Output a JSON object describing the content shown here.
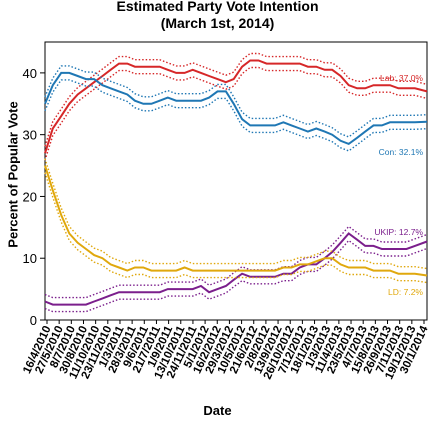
{
  "chart_data": {
    "type": "line",
    "title_line1": "Estimated Party Vote Intention",
    "title_line2": "(March 1st, 2014)",
    "xlabel": "Date",
    "ylabel": "Percent of Popular Vote",
    "ylim": [
      0,
      45
    ],
    "yticks": [
      0,
      10,
      20,
      30,
      40
    ],
    "xlim": [
      "2010-04-16",
      "2014-03-01"
    ],
    "xtick_labels": [
      "16/4/2010",
      "27/5/2010",
      "8/7/2010",
      "30/8/2010",
      "11/10/2010",
      "23/11/2010",
      "1/3/2011",
      "28/3/2011",
      "9/6/2011",
      "21/7/2011",
      "1/9/2011",
      "13/10/2011",
      "24/11/2011",
      "5/1/2012",
      "16/2/2012",
      "29/3/2012",
      "10/5/2012",
      "21/6/2012",
      "2/8/2012",
      "13/9/2012",
      "26/10/2012",
      "7/12/2012",
      "18/1/2013",
      "1/3/2013",
      "11/4/2013",
      "23/5/2013",
      "4/7/2013",
      "15/8/2013",
      "26/9/2013",
      "7/11/2013",
      "19/12/2013",
      "30/1/2014"
    ],
    "grid": false,
    "series": [
      {
        "name": "Lab",
        "end_label": "Lab: 37.0%",
        "color": "#d62728",
        "points": [
          [
            "2010-04-16",
            27
          ],
          [
            "2010-05-15",
            31
          ],
          [
            "2010-06-15",
            33
          ],
          [
            "2010-07-15",
            35
          ],
          [
            "2010-08-15",
            36.5
          ],
          [
            "2010-09-15",
            37.5
          ],
          [
            "2010-10-15",
            38.5
          ],
          [
            "2010-11-15",
            39.5
          ],
          [
            "2010-12-15",
            40.5
          ],
          [
            "2011-01-15",
            41.5
          ],
          [
            "2011-02-15",
            41.5
          ],
          [
            "2011-03-15",
            41
          ],
          [
            "2011-04-15",
            41
          ],
          [
            "2011-05-15",
            41
          ],
          [
            "2011-06-15",
            41
          ],
          [
            "2011-07-15",
            40.5
          ],
          [
            "2011-08-15",
            40
          ],
          [
            "2011-09-15",
            40
          ],
          [
            "2011-10-15",
            40.5
          ],
          [
            "2011-11-15",
            40
          ],
          [
            "2011-12-15",
            39.5
          ],
          [
            "2012-01-15",
            39
          ],
          [
            "2012-02-15",
            38.5
          ],
          [
            "2012-03-15",
            39
          ],
          [
            "2012-04-15",
            41
          ],
          [
            "2012-05-15",
            42
          ],
          [
            "2012-06-15",
            42
          ],
          [
            "2012-07-15",
            41.5
          ],
          [
            "2012-08-15",
            41.5
          ],
          [
            "2012-09-15",
            41.5
          ],
          [
            "2012-10-15",
            41.5
          ],
          [
            "2012-11-15",
            41.5
          ],
          [
            "2012-12-15",
            41
          ],
          [
            "2013-01-15",
            41
          ],
          [
            "2013-02-15",
            40.5
          ],
          [
            "2013-03-15",
            40.5
          ],
          [
            "2013-04-15",
            39.5
          ],
          [
            "2013-05-15",
            38
          ],
          [
            "2013-06-15",
            37.5
          ],
          [
            "2013-07-15",
            37.5
          ],
          [
            "2013-08-15",
            38
          ],
          [
            "2013-09-15",
            38
          ],
          [
            "2013-10-15",
            38
          ],
          [
            "2013-11-15",
            37.5
          ],
          [
            "2013-12-15",
            37.5
          ],
          [
            "2014-01-15",
            37.5
          ],
          [
            "2014-03-01",
            37
          ]
        ]
      },
      {
        "name": "Con",
        "end_label": "Con: 32.1%",
        "color": "#1f77b4",
        "points": [
          [
            "2010-04-16",
            35
          ],
          [
            "2010-05-15",
            38
          ],
          [
            "2010-06-15",
            40
          ],
          [
            "2010-07-15",
            40
          ],
          [
            "2010-08-15",
            39.5
          ],
          [
            "2010-09-15",
            39
          ],
          [
            "2010-10-15",
            39
          ],
          [
            "2010-11-15",
            38
          ],
          [
            "2010-12-15",
            37.5
          ],
          [
            "2011-01-15",
            37
          ],
          [
            "2011-02-15",
            36.5
          ],
          [
            "2011-03-15",
            35.5
          ],
          [
            "2011-04-15",
            35
          ],
          [
            "2011-05-15",
            35
          ],
          [
            "2011-06-15",
            35.5
          ],
          [
            "2011-07-15",
            36
          ],
          [
            "2011-08-15",
            35.5
          ],
          [
            "2011-09-15",
            35.5
          ],
          [
            "2011-10-15",
            35.5
          ],
          [
            "2011-11-15",
            35.5
          ],
          [
            "2011-12-15",
            36
          ],
          [
            "2012-01-15",
            37
          ],
          [
            "2012-02-15",
            37
          ],
          [
            "2012-03-15",
            35
          ],
          [
            "2012-04-15",
            32.5
          ],
          [
            "2012-05-15",
            31.5
          ],
          [
            "2012-06-15",
            31.5
          ],
          [
            "2012-07-15",
            31.5
          ],
          [
            "2012-08-15",
            31.5
          ],
          [
            "2012-09-15",
            32
          ],
          [
            "2012-10-15",
            31.5
          ],
          [
            "2012-11-15",
            31
          ],
          [
            "2012-12-15",
            30.5
          ],
          [
            "2013-01-15",
            31
          ],
          [
            "2013-02-15",
            30.5
          ],
          [
            "2013-03-15",
            30
          ],
          [
            "2013-04-15",
            29
          ],
          [
            "2013-05-15",
            28.5
          ],
          [
            "2013-06-15",
            29.5
          ],
          [
            "2013-07-15",
            30.5
          ],
          [
            "2013-08-15",
            31.5
          ],
          [
            "2013-09-15",
            31.5
          ],
          [
            "2013-10-15",
            32
          ],
          [
            "2013-11-15",
            32
          ],
          [
            "2013-12-15",
            32
          ],
          [
            "2014-01-15",
            32
          ],
          [
            "2014-03-01",
            32.1
          ]
        ]
      },
      {
        "name": "UKIP",
        "end_label": "UKIP: 12.7%",
        "color": "#7b1f8c",
        "points": [
          [
            "2010-04-16",
            3
          ],
          [
            "2010-05-15",
            2.5
          ],
          [
            "2010-06-15",
            2.5
          ],
          [
            "2010-07-15",
            2.5
          ],
          [
            "2010-08-15",
            2.5
          ],
          [
            "2010-09-15",
            2.5
          ],
          [
            "2010-10-15",
            3
          ],
          [
            "2010-11-15",
            3.5
          ],
          [
            "2010-12-15",
            4
          ],
          [
            "2011-01-15",
            4.5
          ],
          [
            "2011-02-15",
            4.5
          ],
          [
            "2011-03-15",
            4.5
          ],
          [
            "2011-04-15",
            4.5
          ],
          [
            "2011-05-15",
            4.5
          ],
          [
            "2011-06-15",
            4.5
          ],
          [
            "2011-07-15",
            5
          ],
          [
            "2011-08-15",
            5
          ],
          [
            "2011-09-15",
            5
          ],
          [
            "2011-10-15",
            5
          ],
          [
            "2011-11-15",
            5.5
          ],
          [
            "2011-12-15",
            4.5
          ],
          [
            "2012-01-15",
            5
          ],
          [
            "2012-02-15",
            5.5
          ],
          [
            "2012-03-15",
            6.5
          ],
          [
            "2012-04-15",
            7.5
          ],
          [
            "2012-05-15",
            7
          ],
          [
            "2012-06-15",
            7
          ],
          [
            "2012-07-15",
            7
          ],
          [
            "2012-08-15",
            7
          ],
          [
            "2012-09-15",
            7.5
          ],
          [
            "2012-10-15",
            7.5
          ],
          [
            "2012-11-15",
            8.5
          ],
          [
            "2012-12-15",
            9
          ],
          [
            "2013-01-15",
            9
          ],
          [
            "2013-02-15",
            10
          ],
          [
            "2013-03-15",
            11
          ],
          [
            "2013-04-15",
            12.5
          ],
          [
            "2013-05-15",
            14
          ],
          [
            "2013-06-15",
            13
          ],
          [
            "2013-07-15",
            12
          ],
          [
            "2013-08-15",
            12
          ],
          [
            "2013-09-15",
            11.5
          ],
          [
            "2013-10-15",
            11.5
          ],
          [
            "2013-11-15",
            11.5
          ],
          [
            "2013-12-15",
            11.5
          ],
          [
            "2014-01-15",
            12
          ],
          [
            "2014-03-01",
            12.7
          ]
        ]
      },
      {
        "name": "LD",
        "end_label": "LD: 7.2%",
        "color": "#e0a80d",
        "points": [
          [
            "2010-04-16",
            25
          ],
          [
            "2010-05-15",
            21
          ],
          [
            "2010-06-15",
            17
          ],
          [
            "2010-07-15",
            14
          ],
          [
            "2010-08-15",
            12.5
          ],
          [
            "2010-09-15",
            11.5
          ],
          [
            "2010-10-15",
            10.5
          ],
          [
            "2010-11-15",
            10
          ],
          [
            "2010-12-15",
            9
          ],
          [
            "2011-01-15",
            8.5
          ],
          [
            "2011-02-15",
            8
          ],
          [
            "2011-03-15",
            8.5
          ],
          [
            "2011-04-15",
            8.5
          ],
          [
            "2011-05-15",
            8
          ],
          [
            "2011-06-15",
            8
          ],
          [
            "2011-07-15",
            8
          ],
          [
            "2011-08-15",
            8
          ],
          [
            "2011-09-15",
            8.5
          ],
          [
            "2011-10-15",
            8
          ],
          [
            "2011-11-15",
            8
          ],
          [
            "2011-12-15",
            8
          ],
          [
            "2012-01-15",
            8
          ],
          [
            "2012-02-15",
            8
          ],
          [
            "2012-03-15",
            8
          ],
          [
            "2012-04-15",
            8
          ],
          [
            "2012-05-15",
            8
          ],
          [
            "2012-06-15",
            8
          ],
          [
            "2012-07-15",
            8
          ],
          [
            "2012-08-15",
            8
          ],
          [
            "2012-09-15",
            8.5
          ],
          [
            "2012-10-15",
            8.5
          ],
          [
            "2012-11-15",
            9
          ],
          [
            "2012-12-15",
            9
          ],
          [
            "2013-01-15",
            9.5
          ],
          [
            "2013-02-15",
            10
          ],
          [
            "2013-03-15",
            10
          ],
          [
            "2013-04-15",
            9
          ],
          [
            "2013-05-15",
            8.5
          ],
          [
            "2013-06-15",
            8.5
          ],
          [
            "2013-07-15",
            8.5
          ],
          [
            "2013-08-15",
            8
          ],
          [
            "2013-09-15",
            8
          ],
          [
            "2013-10-15",
            8
          ],
          [
            "2013-11-15",
            7.5
          ],
          [
            "2013-12-15",
            7.5
          ],
          [
            "2014-01-15",
            7.5
          ],
          [
            "2014-03-01",
            7.2
          ]
        ]
      }
    ]
  }
}
